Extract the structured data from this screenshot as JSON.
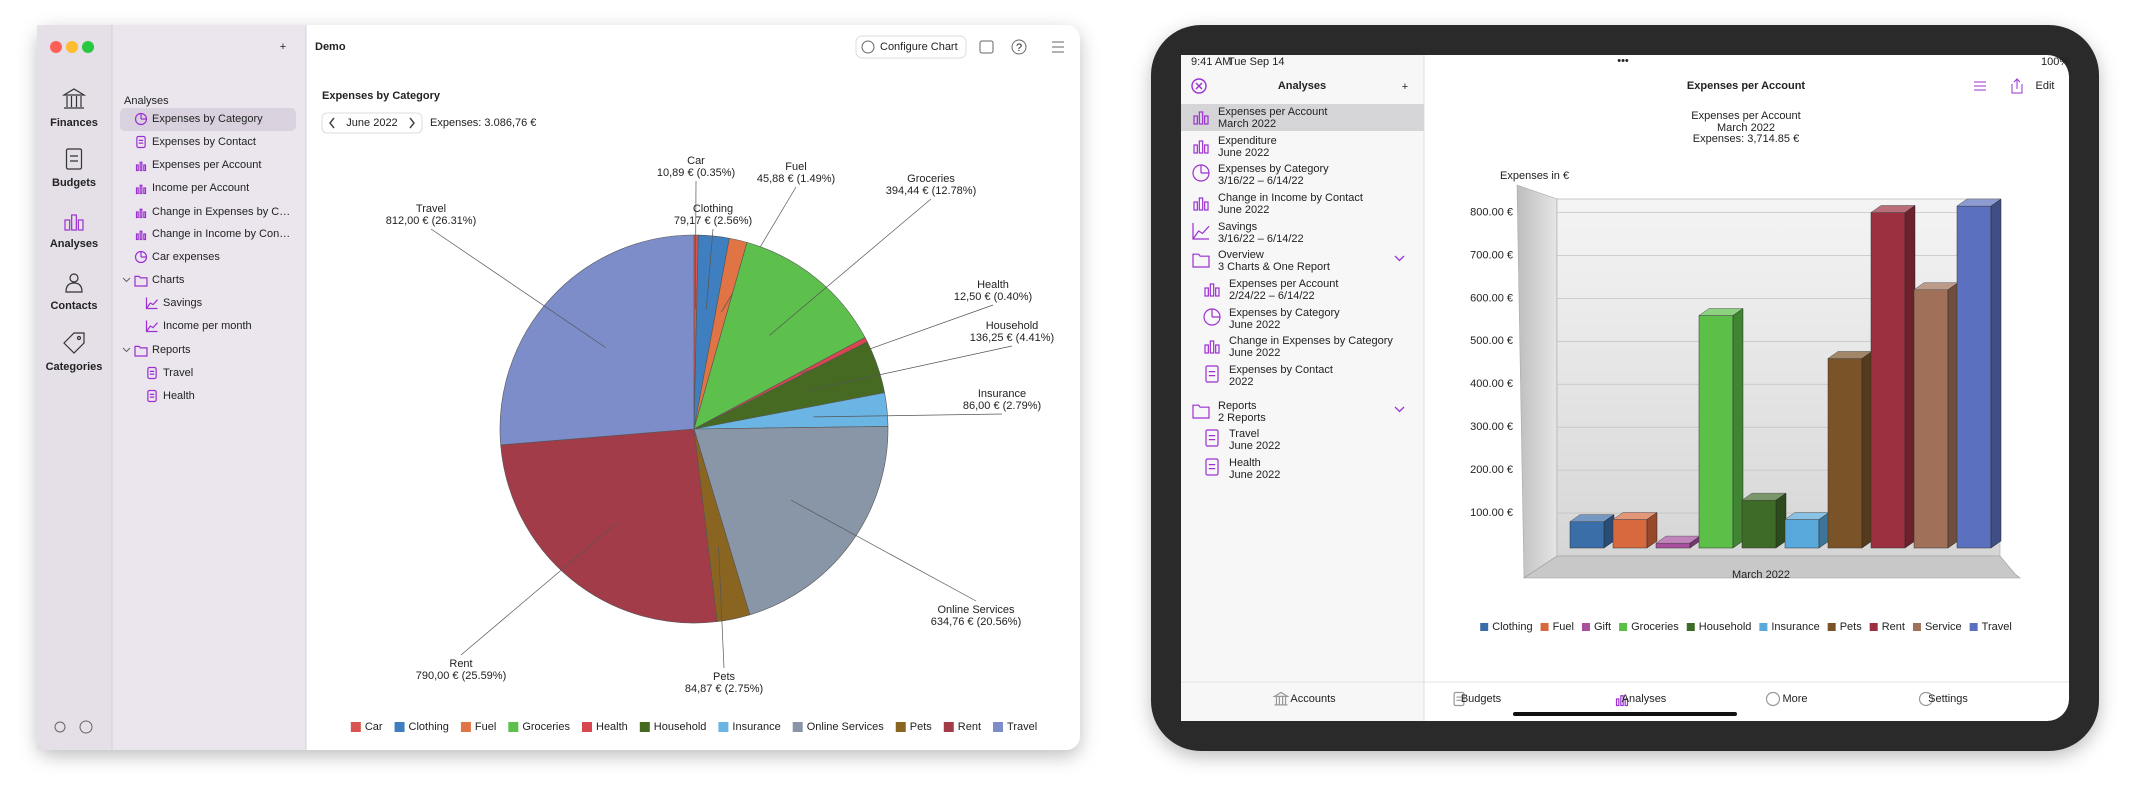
{
  "mac": {
    "window_title": "Demo",
    "configure_button": "Configure Chart",
    "rail": [
      "Finances",
      "Budgets",
      "Analyses",
      "Contacts",
      "Categories"
    ],
    "section": "Analyses",
    "items": [
      "Expenses by Category",
      "Expenses by Contact",
      "Expenses per Account",
      "Income per Account",
      "Change in Expenses by C…",
      "Change in Income by Con…",
      "Car expenses"
    ],
    "charts_folder": "Charts",
    "charts": [
      "Savings",
      "Income per month"
    ],
    "reports_folder": "Reports",
    "reports": [
      "Travel",
      "Health"
    ],
    "period": "June 2022"
  },
  "ipad": {
    "time": "9:41 AM",
    "date": "Tue Sep 14",
    "battery": "100%",
    "sidebar_title": "Analyses",
    "detail_title": "Expenses per Account",
    "edit": "Edit",
    "items": [
      {
        "title": "Expenses per Account",
        "subtitle": "March 2022"
      },
      {
        "title": "Expenditure",
        "subtitle": "June 2022"
      },
      {
        "title": "Expenses by Category",
        "subtitle": "3/16/22 – 6/14/22"
      },
      {
        "title": "Change in Income by Contact",
        "subtitle": "June 2022"
      },
      {
        "title": "Savings",
        "subtitle": "3/16/22 – 6/14/22"
      },
      {
        "title": "Overview",
        "subtitle": "3 Charts & One Report"
      },
      {
        "title": "Expenses per Account",
        "subtitle": "2/24/22 – 6/14/22"
      },
      {
        "title": "Expenses by Category",
        "subtitle": "June 2022"
      },
      {
        "title": "Change in Expenses by Category",
        "subtitle": "June 2022"
      },
      {
        "title": "Expenses by Contact",
        "subtitle": "2022"
      },
      {
        "title": "Reports",
        "subtitle": "2 Reports"
      },
      {
        "title": "Travel",
        "subtitle": "June 2022"
      },
      {
        "title": "Health",
        "subtitle": "June 2022"
      }
    ],
    "tabs": [
      "Accounts",
      "Budgets",
      "Analyses",
      "More",
      "Settings"
    ]
  },
  "chart_data": [
    {
      "type": "pie",
      "title": "Expenses by Category",
      "subtitle": "Expenses: 3.086,76 €",
      "categories": [
        "Car",
        "Clothing",
        "Fuel",
        "Groceries",
        "Health",
        "Household",
        "Insurance",
        "Online Services",
        "Pets",
        "Rent",
        "Travel"
      ],
      "values": [
        10.89,
        79.17,
        45.88,
        394.44,
        12.5,
        136.25,
        86.0,
        634.76,
        84.87,
        790.0,
        812.0
      ],
      "value_labels": [
        "10,89 € (0.35%)",
        "79,17 € (2.56%)",
        "45,88 € (1.49%)",
        "394,44 € (12.78%)",
        "12,50 € (0.40%)",
        "136,25 € (4.41%)",
        "86,00 € (2.79%)",
        "634,76 € (20.56%)",
        "84,87 € (2.75%)",
        "790,00 € (25.59%)",
        "812,00 € (26.31%)"
      ],
      "colors": [
        "#d9534f",
        "#3f7fbf",
        "#e07444",
        "#5dbf4c",
        "#d8464f",
        "#476a22",
        "#6bb5e4",
        "#8996a8",
        "#8a6522",
        "#a33c49",
        "#7c8dc9"
      ],
      "legend": "bottom"
    },
    {
      "type": "bar",
      "title": "Expenses per Account",
      "subtitle": "March 2022",
      "note": "Expenses: 3,714.85 €",
      "y_label": "Expenses in €",
      "categories": [
        "March 2022"
      ],
      "series": [
        {
          "name": "Clothing",
          "color": "#3a6ea8",
          "values": [
            80
          ]
        },
        {
          "name": "Fuel",
          "color": "#d8693f",
          "values": [
            85
          ]
        },
        {
          "name": "Gift",
          "color": "#a8509e",
          "values": [
            30
          ]
        },
        {
          "name": "Groceries",
          "color": "#5cbf48",
          "values": [
            560
          ]
        },
        {
          "name": "Household",
          "color": "#3f6b28",
          "values": [
            130
          ]
        },
        {
          "name": "Insurance",
          "color": "#58a8dc",
          "values": [
            85
          ]
        },
        {
          "name": "Pets",
          "color": "#7a5428",
          "values": [
            460
          ]
        },
        {
          "name": "Rent",
          "color": "#9c3040",
          "values": [
            800
          ]
        },
        {
          "name": "Service",
          "color": "#a07058",
          "values": [
            620
          ]
        },
        {
          "name": "Travel",
          "color": "#5c70c0",
          "values": [
            815
          ]
        }
      ],
      "ylim": [
        0,
        850
      ],
      "yticks": [
        {
          "value": 100,
          "label": "100.00 €"
        },
        {
          "value": 200,
          "label": "200.00 €"
        },
        {
          "value": 300,
          "label": "300.00 €"
        },
        {
          "value": 400,
          "label": "400.00 €"
        },
        {
          "value": 500,
          "label": "500.00 €"
        },
        {
          "value": 600,
          "label": "600.00 €"
        },
        {
          "value": 700,
          "label": "700.00 €"
        },
        {
          "value": 800,
          "label": "800.00 €"
        }
      ],
      "grid": true,
      "legend": "bottom"
    }
  ]
}
